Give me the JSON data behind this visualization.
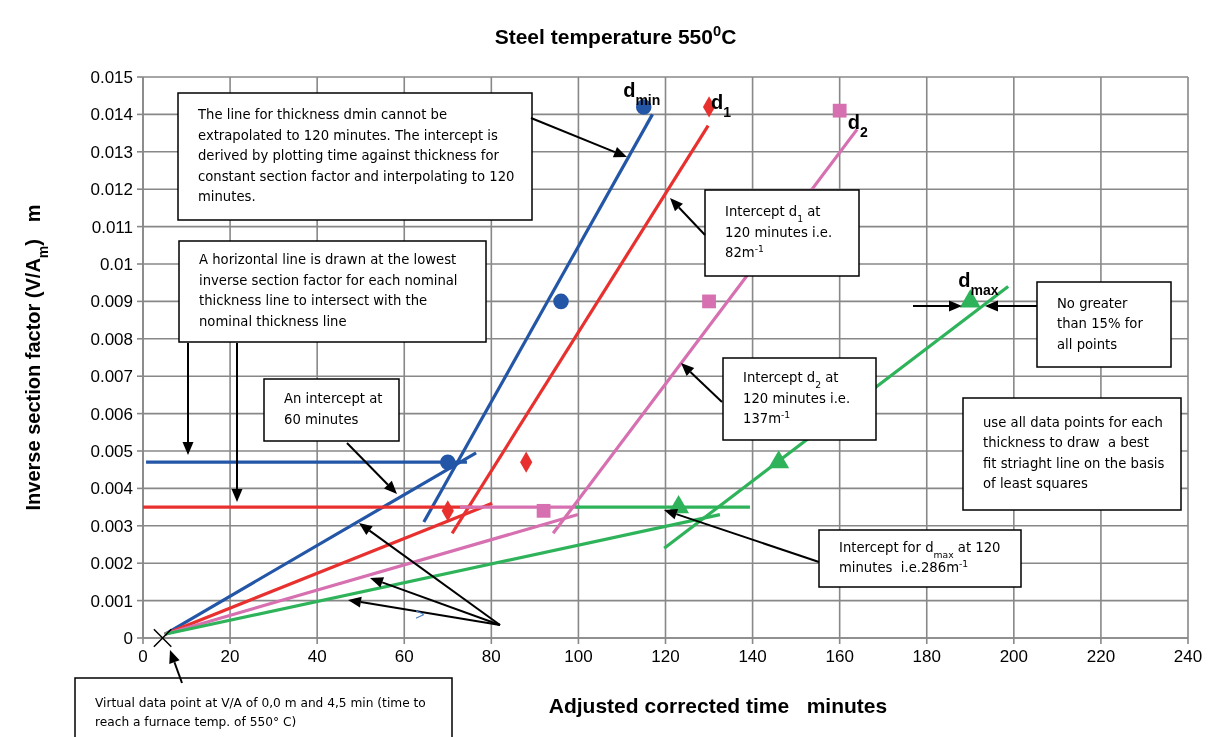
{
  "chart_data": {
    "type": "scatter",
    "title": "Steel temperature 550$^{0}$C",
    "xlabel": "Adjusted corrected time   minutes",
    "ylabel": "Inverse section factor (V/A$_{m}$)   m",
    "xlim": [
      0,
      240
    ],
    "xticks": [
      0,
      20,
      40,
      60,
      80,
      100,
      120,
      140,
      160,
      180,
      200,
      220,
      240
    ],
    "ylim": [
      0,
      0.015
    ],
    "yticks": [
      0,
      0.001,
      0.002,
      0.003,
      0.004,
      0.005,
      0.006,
      0.007,
      0.008,
      0.009,
      0.01,
      0.011,
      0.012,
      0.013,
      0.014,
      0.015
    ],
    "grid": true,
    "legend": false,
    "series": [
      {
        "type": "line",
        "color": "#2356a6",
        "x": [
          64.5,
          117
        ],
        "values": [
          0.0031,
          0.014
        ]
      },
      {
        "type": "line",
        "color": "#2356a6",
        "x": [
          5,
          76.5
        ],
        "values": [
          0.0001,
          0.00495
        ]
      },
      {
        "type": "line",
        "color": "#2356a6",
        "x": [
          0.7,
          74.4
        ],
        "values": [
          0.0047,
          0.0047
        ]
      },
      {
        "type": "line",
        "color": "#e8312f",
        "x": [
          71,
          129.8
        ],
        "values": [
          0.0028,
          0.0137
        ]
      },
      {
        "type": "line",
        "color": "#e8312f",
        "x": [
          5,
          80.2
        ],
        "values": [
          0.0001,
          0.0036
        ]
      },
      {
        "type": "line",
        "color": "#e8312f",
        "x": [
          0,
          75.8
        ],
        "values": [
          0.0035,
          0.0035
        ]
      },
      {
        "type": "line",
        "color": "#d670b0",
        "x": [
          94.2,
          164
        ],
        "values": [
          0.0028,
          0.0136
        ]
      },
      {
        "type": "line",
        "color": "#d670b0",
        "x": [
          5,
          99.9
        ],
        "values": [
          0.0001,
          0.0033
        ]
      },
      {
        "type": "line",
        "color": "#d670b0",
        "x": [
          72.8,
          100.4
        ],
        "values": [
          0.0035,
          0.0035
        ]
      },
      {
        "type": "line",
        "color": "#2fb35a",
        "x": [
          119.7,
          198.7
        ],
        "values": [
          0.0024,
          0.0094
        ]
      },
      {
        "type": "line",
        "color": "#2fb35a",
        "x": [
          5,
          132.5
        ],
        "values": [
          0.0001,
          0.0033
        ]
      },
      {
        "type": "line",
        "color": "#2fb35a",
        "x": [
          99.3,
          139.4
        ],
        "values": [
          0.0035,
          0.0035
        ]
      },
      {
        "name": "d$_{min}$",
        "color": "#2356a6",
        "marker": "circle",
        "x": [
          70,
          96,
          115
        ],
        "values": [
          0.0047,
          0.009,
          0.0142
        ]
      },
      {
        "name": "d$_{1}$",
        "color": "#e8312f",
        "marker": "diamond",
        "x": [
          70,
          88,
          130
        ],
        "values": [
          0.0034,
          0.0047,
          0.0142
        ]
      },
      {
        "name": "d$_{2}$",
        "color": "#d670b0",
        "marker": "square",
        "x": [
          92,
          130,
          160
        ],
        "values": [
          0.0034,
          0.009,
          0.0141
        ]
      },
      {
        "name": "d$_{max}$",
        "color": "#2fb35a",
        "marker": "triangle",
        "x": [
          123,
          146,
          190
        ],
        "values": [
          0.0035,
          0.0047,
          0.009
        ]
      },
      {
        "color": "#000000",
        "marker": "cross",
        "x": [
          4.5
        ],
        "values": [
          0
        ]
      }
    ],
    "annotations": [
      "The line for thickness dmin cannot be extrapolated to 120 minutes. The intercept is derived by plotting time against thickness for constant section factor and interpolating to 120 minutes.",
      "A horizontal line is drawn at the lowest inverse section factor for each nominal thickness line to intersect with the nominal thickness line",
      "An intercept at 60 minutes",
      "Intercept d$_{1}$ at 120 minutes i.e. 82m$^{-1}$",
      "Intercept d$_{2}$ at 120 minutes i.e. 137m$^{-1}$",
      "No greater than 15% for all points",
      "use all data points for each thickness to draw  a best fit striaght line on the basis of least squares",
      "Intercept for d$_{max}$ at 120 minutes  i.e.286m$^{-1}$",
      "Virtual data point at V/A of 0,0 m and 4,5 min (time to reach a furnace temp. of 550° C)",
      ">"
    ]
  }
}
